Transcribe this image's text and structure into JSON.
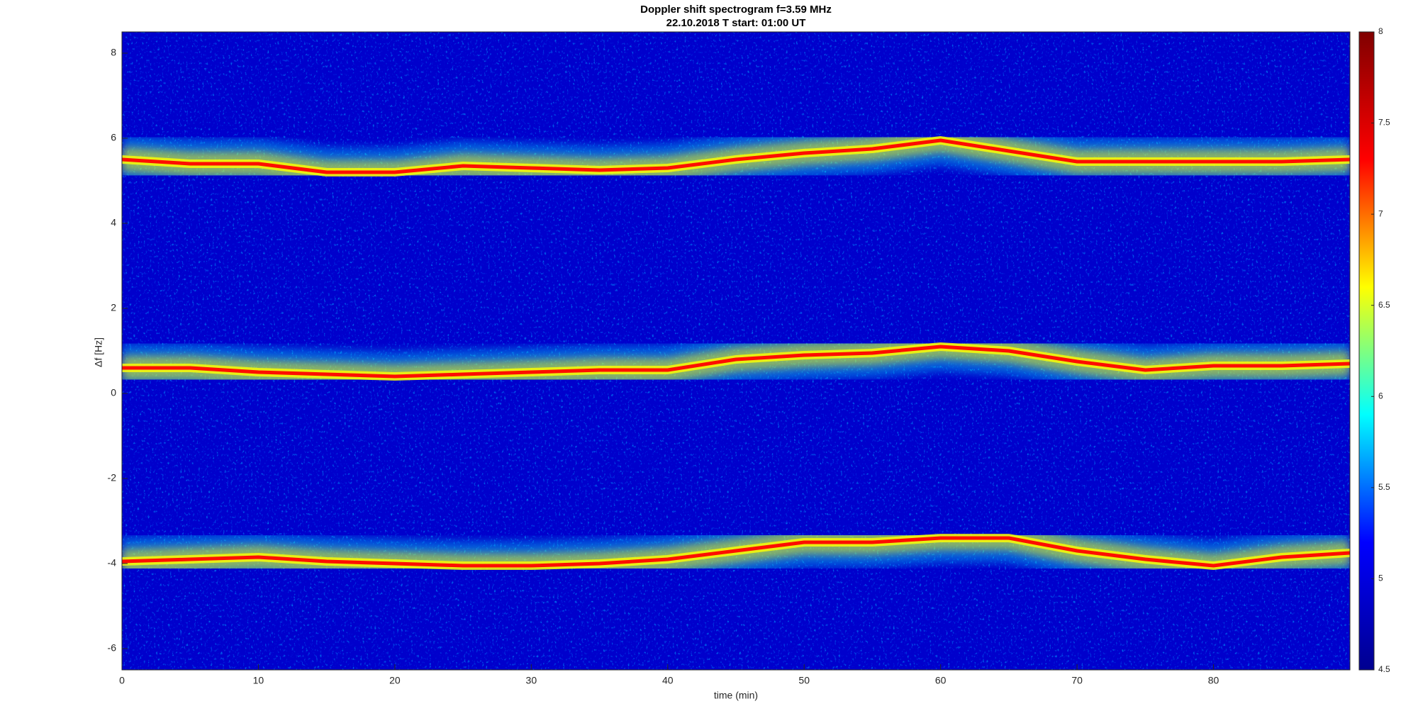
{
  "chart_data": {
    "type": "heatmap",
    "title": "Doppler shift spectrogram f=3.59 MHz",
    "subtitle": "22.10.2018   T start: 01:00 UT",
    "x_label": "time (min)",
    "y_label": "Δf [Hz]",
    "xlim": [
      0,
      90
    ],
    "xticks": [
      0,
      10,
      20,
      30,
      40,
      50,
      60,
      70,
      80
    ],
    "ylim": [
      -6.5,
      8.5
    ],
    "yticks": [
      -6,
      -4,
      -2,
      0,
      2,
      4,
      6,
      8
    ],
    "clim": [
      4.5,
      8
    ],
    "cticks": [
      4.5,
      5,
      5.5,
      6,
      6.5,
      7,
      7.5,
      8
    ],
    "colormap": [
      "#00008f",
      "#0000ff",
      "#00ffff",
      "#ffff00",
      "#ff0000",
      "#800000"
    ],
    "x": [
      0,
      5,
      10,
      15,
      20,
      25,
      30,
      35,
      40,
      45,
      50,
      55,
      60,
      65,
      70,
      75,
      80,
      85,
      90
    ],
    "series": [
      {
        "values": [
          5.5,
          5.4,
          5.4,
          5.2,
          5.2,
          5.35,
          5.3,
          5.25,
          5.3,
          5.5,
          5.65,
          5.75,
          5.95,
          5.7,
          5.45,
          5.45,
          5.45,
          5.45,
          5.5
        ]
      },
      {
        "values": [
          0.6,
          0.6,
          0.5,
          0.45,
          0.4,
          0.45,
          0.5,
          0.55,
          0.55,
          0.8,
          0.9,
          0.95,
          1.1,
          1.0,
          0.75,
          0.55,
          0.65,
          0.65,
          0.7
        ]
      },
      {
        "values": [
          -3.95,
          -3.9,
          -3.85,
          -3.95,
          -4.0,
          -4.05,
          -4.05,
          -4.0,
          -3.9,
          -3.7,
          -3.5,
          -3.5,
          -3.4,
          -3.4,
          -3.7,
          -3.9,
          -4.05,
          -3.85,
          -3.75
        ]
      }
    ]
  }
}
